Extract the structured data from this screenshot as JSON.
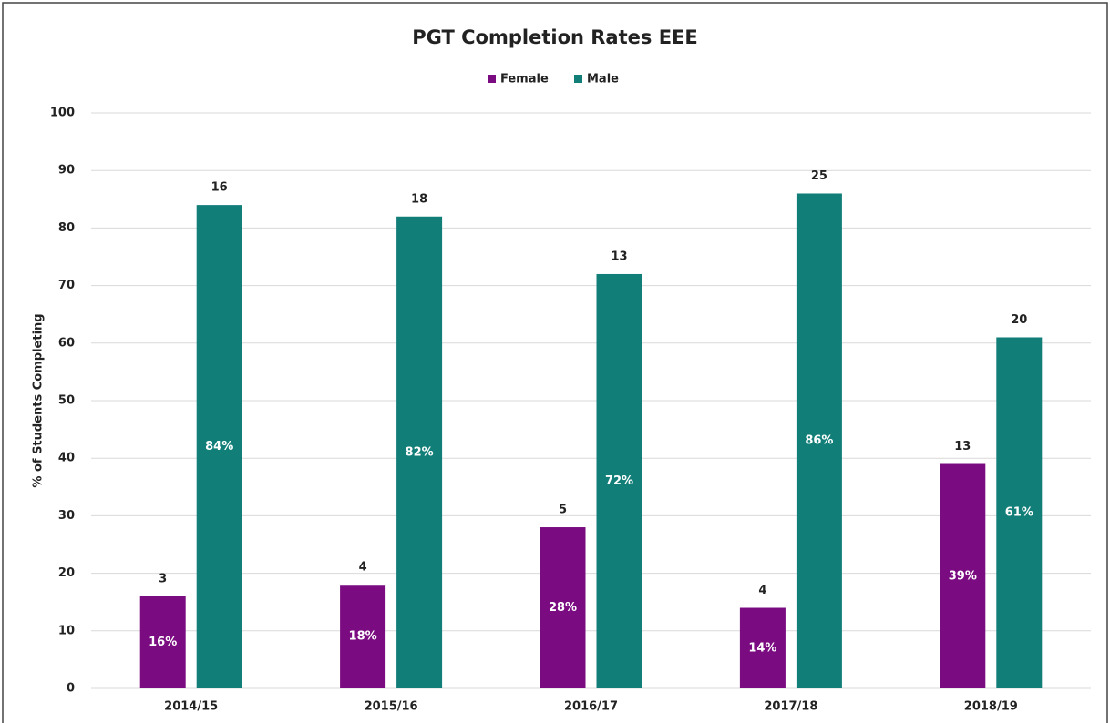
{
  "chart_data": {
    "type": "bar",
    "title": "PGT Completion Rates EEE",
    "y_label": "% of Students Completing",
    "categories": [
      "2014/15",
      "2015/16",
      "2016/17",
      "2017/18",
      "2018/19"
    ],
    "series": [
      {
        "name": "Female",
        "color": "#7a0b80",
        "values": [
          16,
          18,
          28,
          14,
          39
        ],
        "value_labels": [
          "16%",
          "18%",
          "28%",
          "14%",
          "39%"
        ],
        "counts": [
          3,
          4,
          5,
          4,
          13
        ]
      },
      {
        "name": "Male",
        "color": "#127e78",
        "values": [
          84,
          82,
          72,
          86,
          61
        ],
        "value_labels": [
          "84%",
          "82%",
          "72%",
          "86%",
          "61%"
        ],
        "counts": [
          16,
          18,
          13,
          25,
          20
        ]
      }
    ],
    "ylim": [
      0,
      100
    ],
    "yticks": [
      0,
      10,
      20,
      30,
      40,
      50,
      60,
      70,
      80,
      90,
      100
    ],
    "grid": true,
    "legend": "top"
  }
}
